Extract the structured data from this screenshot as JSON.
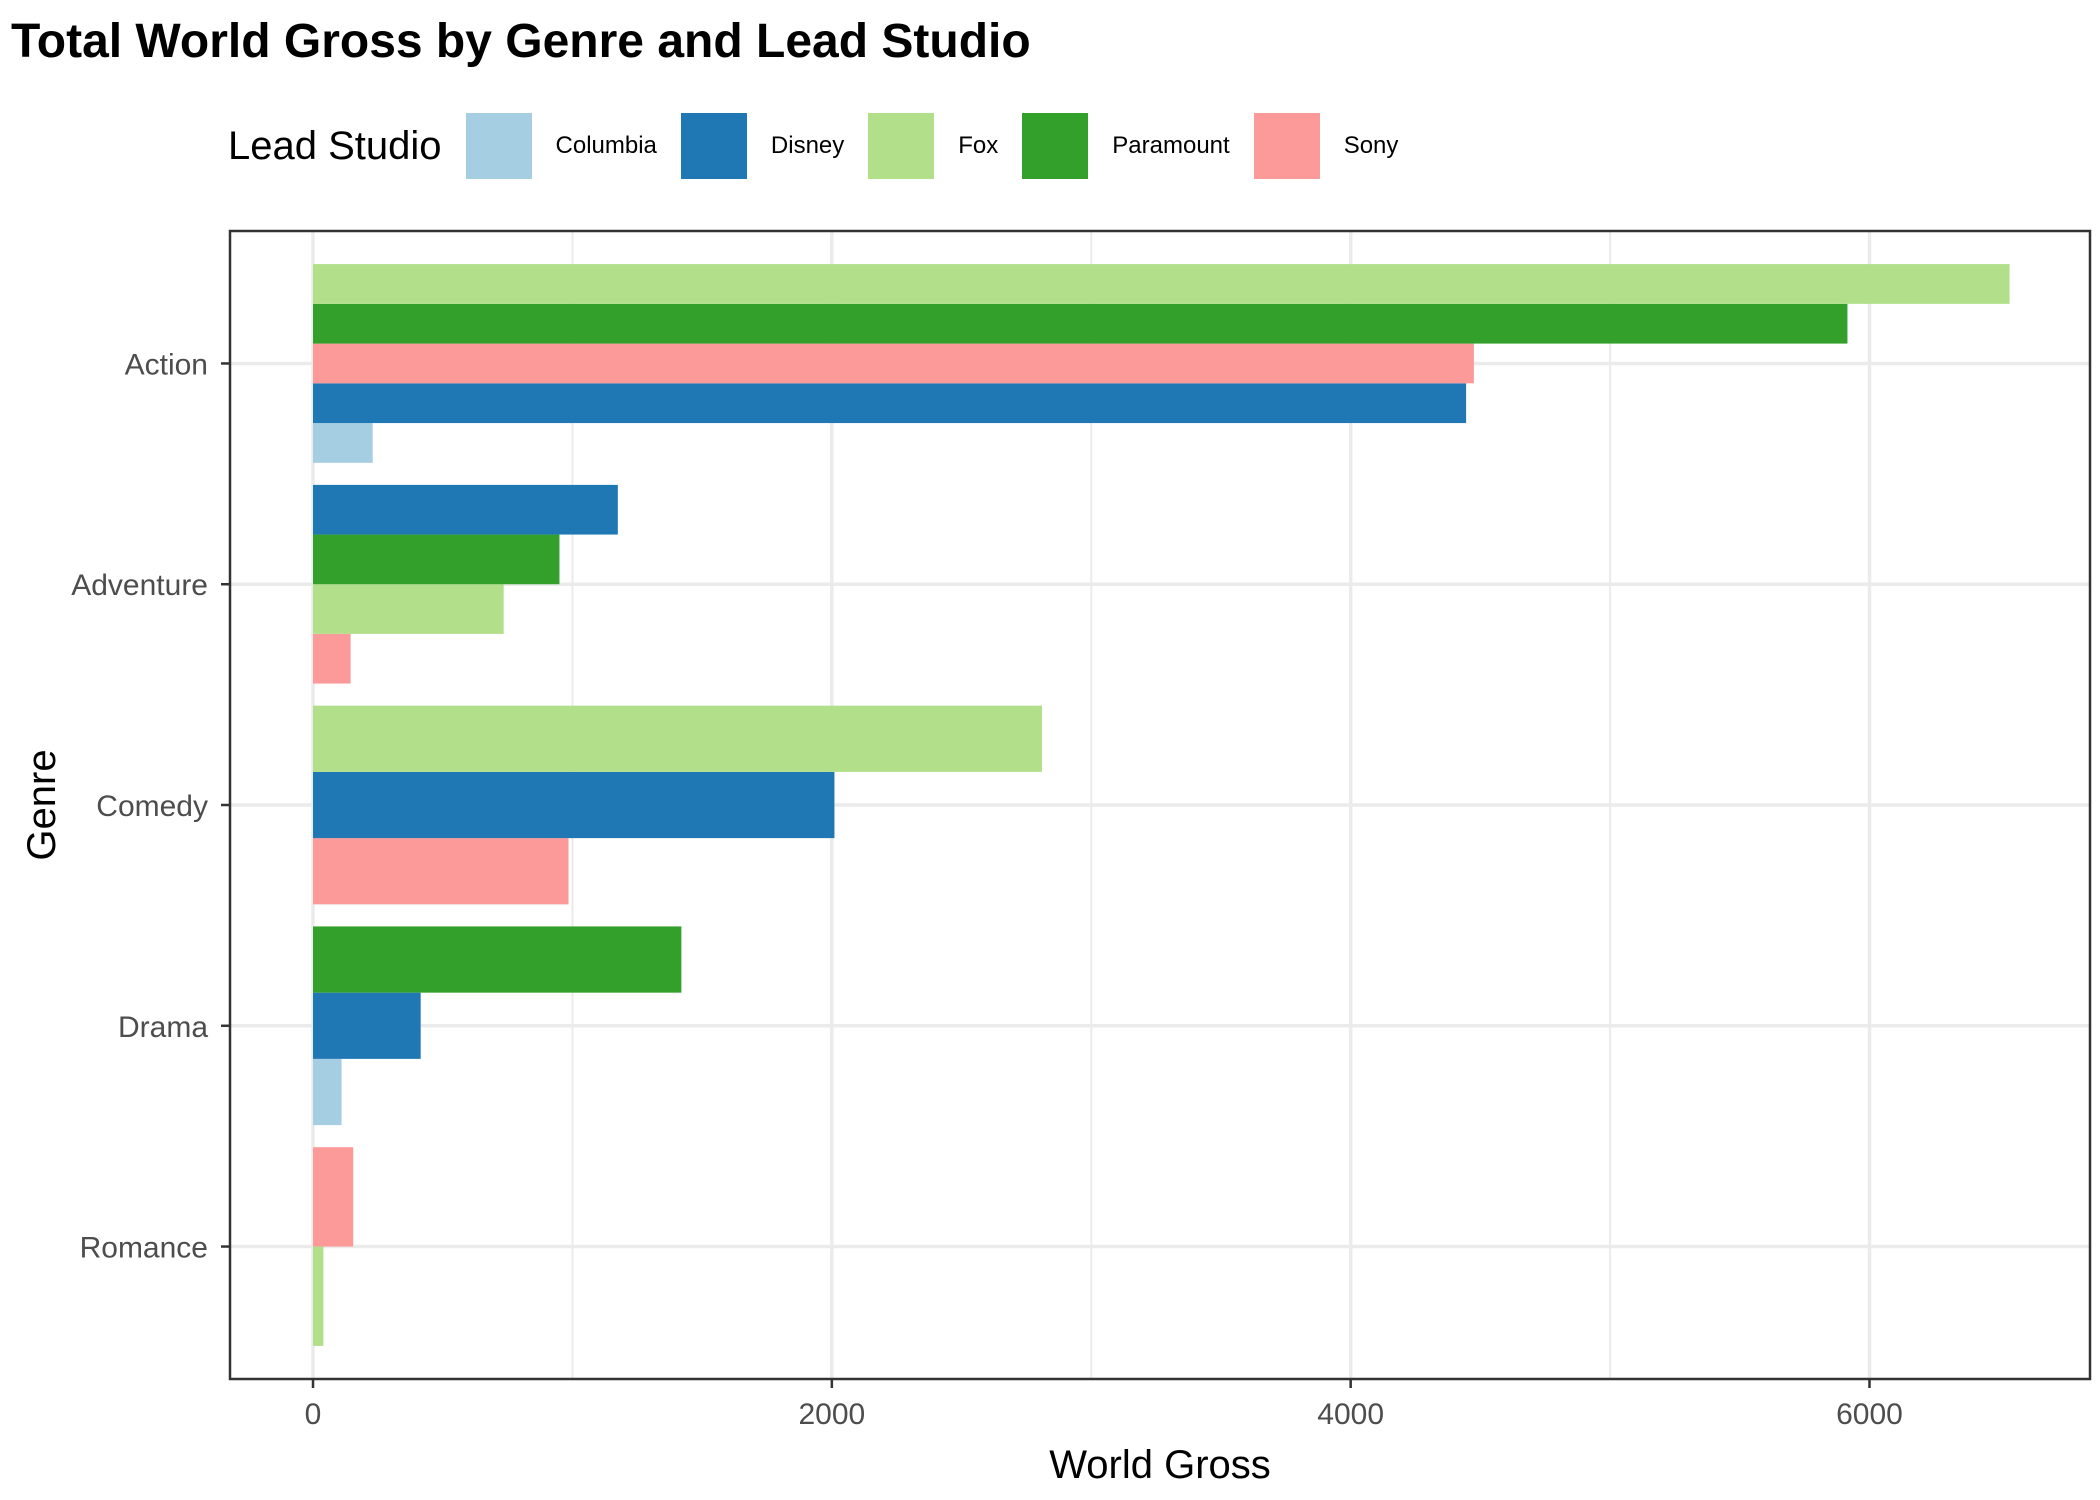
{
  "chart_data": {
    "type": "bar",
    "orientation": "horizontal",
    "title": "Total World Gross by Genre and Lead Studio",
    "xlabel": "World Gross",
    "ylabel": "Genre",
    "xlim": [
      -320,
      6850
    ],
    "xticks": [
      0,
      2000,
      4000,
      6000
    ],
    "grid": true,
    "legend": {
      "title": "Lead Studio",
      "position": "top"
    },
    "categories": [
      "Action",
      "Adventure",
      "Comedy",
      "Drama",
      "Romance"
    ],
    "series": [
      {
        "name": "Columbia",
        "color": "#a6cee3",
        "values": [
          230,
          null,
          null,
          110,
          null
        ]
      },
      {
        "name": "Disney",
        "color": "#1f78b4",
        "values": [
          4445,
          1175,
          2010,
          415,
          null
        ]
      },
      {
        "name": "Fox",
        "color": "#b2df8a",
        "values": [
          6540,
          735,
          2810,
          null,
          40
        ]
      },
      {
        "name": "Paramount",
        "color": "#33a02c",
        "values": [
          5915,
          950,
          null,
          1420,
          null
        ]
      },
      {
        "name": "Sony",
        "color": "#fb9a99",
        "values": [
          4475,
          145,
          985,
          null,
          155
        ]
      }
    ],
    "stack_order": {
      "Action": [
        "Columbia",
        "Disney",
        "Sony",
        "Paramount",
        "Fox"
      ],
      "Adventure": [
        "Sony",
        "Fox",
        "Paramount",
        "Disney"
      ],
      "Comedy": [
        "Sony",
        "Disney",
        "Fox"
      ],
      "Drama": [
        "Columbia",
        "Disney",
        "Paramount"
      ],
      "Romance": [
        "Fox",
        "Sony"
      ]
    }
  }
}
